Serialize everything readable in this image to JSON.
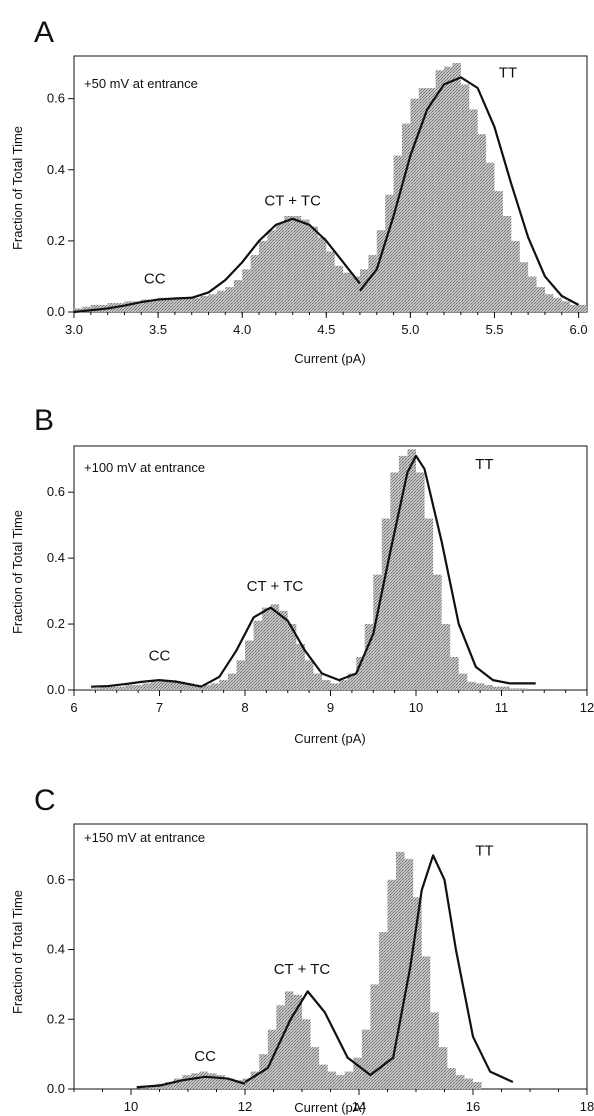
{
  "figure": {
    "panels": [
      {
        "letter": "A",
        "condition": "+50 mV at entrance",
        "xlabel": "Current (pA)",
        "ylabel": "Fraction of Total Time"
      },
      {
        "letter": "B",
        "condition": "+100 mV at entrance",
        "xlabel": "Current (pA)",
        "ylabel": "Fraction of Total Time"
      },
      {
        "letter": "C",
        "condition": "+150 mV at entrance",
        "xlabel": "Current (pA)",
        "ylabel": "Fraction of Total Time"
      }
    ]
  },
  "chart_data": [
    {
      "type": "bar",
      "panel": "A",
      "title": "",
      "annotation": "+50 mV at entrance",
      "xlabel": "Current (pA)",
      "ylabel": "Fraction of Total Time",
      "xlim": [
        3.0,
        6.05
      ],
      "ylim": [
        0,
        0.72
      ],
      "xticks": [
        "3.0",
        "3.5",
        "4.0",
        "4.5",
        "5.0",
        "5.5",
        "6.0"
      ],
      "yticks": [
        "0.0",
        "0.2",
        "0.4",
        "0.6"
      ],
      "histogram": {
        "bin_width": 0.05,
        "bin_start": 3.0,
        "values": [
          0.01,
          0.015,
          0.02,
          0.02,
          0.025,
          0.025,
          0.03,
          0.03,
          0.035,
          0.035,
          0.04,
          0.04,
          0.04,
          0.04,
          0.04,
          0.045,
          0.05,
          0.06,
          0.07,
          0.09,
          0.12,
          0.16,
          0.2,
          0.23,
          0.25,
          0.27,
          0.27,
          0.26,
          0.24,
          0.21,
          0.17,
          0.13,
          0.11,
          0.1,
          0.12,
          0.16,
          0.23,
          0.33,
          0.44,
          0.53,
          0.6,
          0.63,
          0.63,
          0.68,
          0.69,
          0.7,
          0.64,
          0.57,
          0.5,
          0.42,
          0.34,
          0.27,
          0.2,
          0.14,
          0.1,
          0.07,
          0.05,
          0.04,
          0.03,
          0.02,
          0.02
        ]
      },
      "fit_segments": [
        {
          "x": [
            3.0,
            3.1,
            3.2,
            3.3,
            3.4,
            3.5,
            3.6,
            3.7,
            3.8,
            3.9,
            4.0,
            4.1,
            4.2,
            4.3,
            4.4,
            4.5,
            4.6,
            4.7
          ],
          "y": [
            0.0,
            0.005,
            0.01,
            0.018,
            0.028,
            0.035,
            0.038,
            0.04,
            0.055,
            0.09,
            0.14,
            0.2,
            0.245,
            0.262,
            0.245,
            0.2,
            0.14,
            0.08
          ]
        },
        {
          "x": [
            4.7,
            4.8,
            4.9,
            5.0,
            5.1,
            5.2,
            5.3,
            5.4,
            5.5,
            5.6,
            5.7,
            5.8,
            5.9,
            6.0
          ],
          "y": [
            0.06,
            0.12,
            0.27,
            0.44,
            0.57,
            0.64,
            0.66,
            0.63,
            0.52,
            0.36,
            0.21,
            0.1,
            0.045,
            0.02
          ]
        }
      ],
      "peak_labels": [
        {
          "text": "CC",
          "x": 3.48,
          "y": 0.08
        },
        {
          "text": "CT + TC",
          "x": 4.3,
          "y": 0.3
        },
        {
          "text": "TT",
          "x": 5.58,
          "y": 0.66
        }
      ]
    },
    {
      "type": "bar",
      "panel": "B",
      "title": "",
      "annotation": "+100 mV at entrance",
      "xlabel": "Current (pA)",
      "ylabel": "Fraction of Total Time",
      "xlim": [
        6,
        12
      ],
      "ylim": [
        0,
        0.74
      ],
      "xticks": [
        "6",
        "7",
        "8",
        "9",
        "10",
        "11",
        "12"
      ],
      "yticks": [
        "0.0",
        "0.2",
        "0.4",
        "0.6"
      ],
      "histogram": {
        "bin_width": 0.1,
        "bin_start": 6.0,
        "values": [
          0.0,
          0.0,
          0.005,
          0.01,
          0.01,
          0.01,
          0.015,
          0.015,
          0.02,
          0.025,
          0.03,
          0.03,
          0.025,
          0.02,
          0.015,
          0.015,
          0.02,
          0.03,
          0.05,
          0.09,
          0.15,
          0.21,
          0.25,
          0.26,
          0.24,
          0.2,
          0.14,
          0.09,
          0.05,
          0.03,
          0.02,
          0.03,
          0.05,
          0.1,
          0.2,
          0.35,
          0.52,
          0.66,
          0.71,
          0.73,
          0.66,
          0.52,
          0.35,
          0.2,
          0.1,
          0.05,
          0.025,
          0.02,
          0.015,
          0.01,
          0.01,
          0.005,
          0.005,
          0.0,
          0.0,
          0.0,
          0.0,
          0.0,
          0.0,
          0.0
        ]
      },
      "fit_segments": [
        {
          "x": [
            6.2,
            6.4,
            6.6,
            6.8,
            7.0,
            7.2,
            7.4,
            7.5
          ],
          "y": [
            0.01,
            0.012,
            0.018,
            0.025,
            0.03,
            0.025,
            0.015,
            0.01
          ]
        },
        {
          "x": [
            7.5,
            7.7,
            7.9,
            8.1,
            8.3,
            8.5,
            8.7,
            8.9,
            9.1,
            9.3,
            9.5,
            9.7,
            9.9,
            10.0,
            10.1,
            10.3,
            10.5,
            10.7,
            10.9,
            11.1,
            11.4
          ],
          "y": [
            0.012,
            0.04,
            0.12,
            0.22,
            0.25,
            0.21,
            0.12,
            0.05,
            0.03,
            0.05,
            0.17,
            0.42,
            0.66,
            0.71,
            0.67,
            0.45,
            0.2,
            0.07,
            0.03,
            0.02,
            0.02
          ]
        }
      ],
      "peak_labels": [
        {
          "text": "CC",
          "x": 7.0,
          "y": 0.09
        },
        {
          "text": "CT + TC",
          "x": 8.35,
          "y": 0.3
        },
        {
          "text": "TT",
          "x": 10.8,
          "y": 0.67
        }
      ]
    },
    {
      "type": "bar",
      "panel": "C",
      "title": "",
      "annotation": "+150 mV at entrance",
      "xlabel": "Current (pA)",
      "ylabel": "Fraction of Total Time",
      "xlim": [
        9,
        18
      ],
      "ylim": [
        0,
        0.76
      ],
      "xticks": [
        "10",
        "12",
        "14",
        "16",
        "18"
      ],
      "yticks": [
        "0.0",
        "0.2",
        "0.4",
        "0.6"
      ],
      "histogram": {
        "bin_width": 0.15,
        "bin_start": 10.0,
        "values": [
          0.0,
          0.0,
          0.01,
          0.015,
          0.02,
          0.03,
          0.04,
          0.045,
          0.05,
          0.045,
          0.04,
          0.03,
          0.025,
          0.03,
          0.05,
          0.1,
          0.17,
          0.24,
          0.28,
          0.27,
          0.2,
          0.12,
          0.07,
          0.05,
          0.04,
          0.05,
          0.09,
          0.17,
          0.3,
          0.45,
          0.6,
          0.68,
          0.66,
          0.55,
          0.38,
          0.22,
          0.12,
          0.06,
          0.04,
          0.03,
          0.02,
          0.0,
          0.0,
          0.0,
          0.0,
          0.0,
          0.0,
          0.0,
          0.0,
          0.0,
          0.0,
          0.0,
          0.0
        ]
      },
      "fit_segments": [
        {
          "x": [
            10.1,
            10.5,
            10.9,
            11.3,
            11.7,
            12.0
          ],
          "y": [
            0.005,
            0.01,
            0.025,
            0.035,
            0.03,
            0.015
          ]
        },
        {
          "x": [
            12.0,
            12.4,
            12.8,
            13.1,
            13.4,
            13.8,
            14.2,
            14.6,
            14.9,
            15.1,
            15.3,
            15.5,
            15.7,
            16.0,
            16.3,
            16.7
          ],
          "y": [
            0.02,
            0.06,
            0.2,
            0.28,
            0.22,
            0.09,
            0.04,
            0.09,
            0.35,
            0.57,
            0.67,
            0.6,
            0.4,
            0.15,
            0.05,
            0.02
          ]
        }
      ],
      "peak_labels": [
        {
          "text": "CC",
          "x": 11.3,
          "y": 0.08
        },
        {
          "text": "CT + TC",
          "x": 13.0,
          "y": 0.33
        },
        {
          "text": "TT",
          "x": 16.2,
          "y": 0.67
        }
      ]
    }
  ]
}
